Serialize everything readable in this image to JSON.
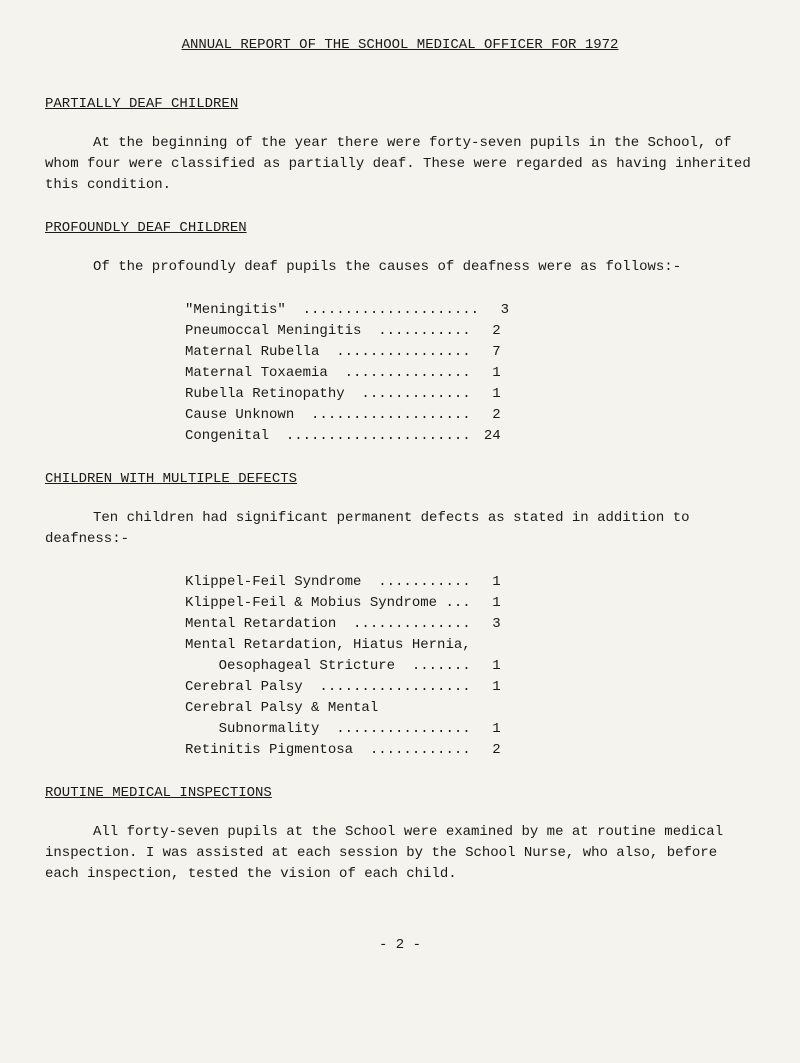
{
  "title": "ANNUAL REPORT OF THE SCHOOL MEDICAL OFFICER FOR 1972",
  "section1": {
    "heading": "PARTIALLY DEAF CHILDREN",
    "paragraph": "At the beginning of the year there were forty-seven pupils in the School, of whom four were classified as partially deaf.  These were regarded as having inherited this condition."
  },
  "section2": {
    "heading": "PROFOUNDLY DEAF CHILDREN",
    "intro": "Of the profoundly deaf pupils the causes of deafness were as follows:-",
    "rows": [
      {
        "label": "\"Meningitis\"  .....................",
        "value": "3"
      },
      {
        "label": "Pneumoccal Meningitis  ...........",
        "value": "2"
      },
      {
        "label": "Maternal Rubella  ................",
        "value": "7"
      },
      {
        "label": "Maternal Toxaemia  ...............",
        "value": "1"
      },
      {
        "label": "Rubella Retinopathy  .............",
        "value": "1"
      },
      {
        "label": "Cause Unknown  ...................",
        "value": "2"
      },
      {
        "label": "Congenital  ......................",
        "value": "24"
      }
    ]
  },
  "section3": {
    "heading": "CHILDREN WITH MULTIPLE DEFECTS",
    "intro": "Ten children had significant permanent defects as stated in addition to deafness:-",
    "rows": [
      {
        "label": "Klippel-Feil Syndrome  ...........",
        "value": "1"
      },
      {
        "label": "Klippel-Feil & Mobius Syndrome ...",
        "value": "1"
      },
      {
        "label": "Mental Retardation  ..............",
        "value": "3"
      },
      {
        "label": "Mental Retardation, Hiatus Hernia,",
        "value": ""
      },
      {
        "label": "    Oesophageal Stricture  .......",
        "value": "1"
      },
      {
        "label": "Cerebral Palsy  ..................",
        "value": "1"
      },
      {
        "label": "Cerebral Palsy & Mental",
        "value": ""
      },
      {
        "label": "    Subnormality  ................",
        "value": "1"
      },
      {
        "label": "Retinitis Pigmentosa  ............",
        "value": "2"
      }
    ]
  },
  "section4": {
    "heading": "ROUTINE MEDICAL INSPECTIONS",
    "paragraph": "All forty-seven pupils at the School were examined by me at routine medical inspection.  I was assisted at each session by the School Nurse, who also, before each inspection, tested the vision of each child."
  },
  "pageNumber": "- 2 -"
}
